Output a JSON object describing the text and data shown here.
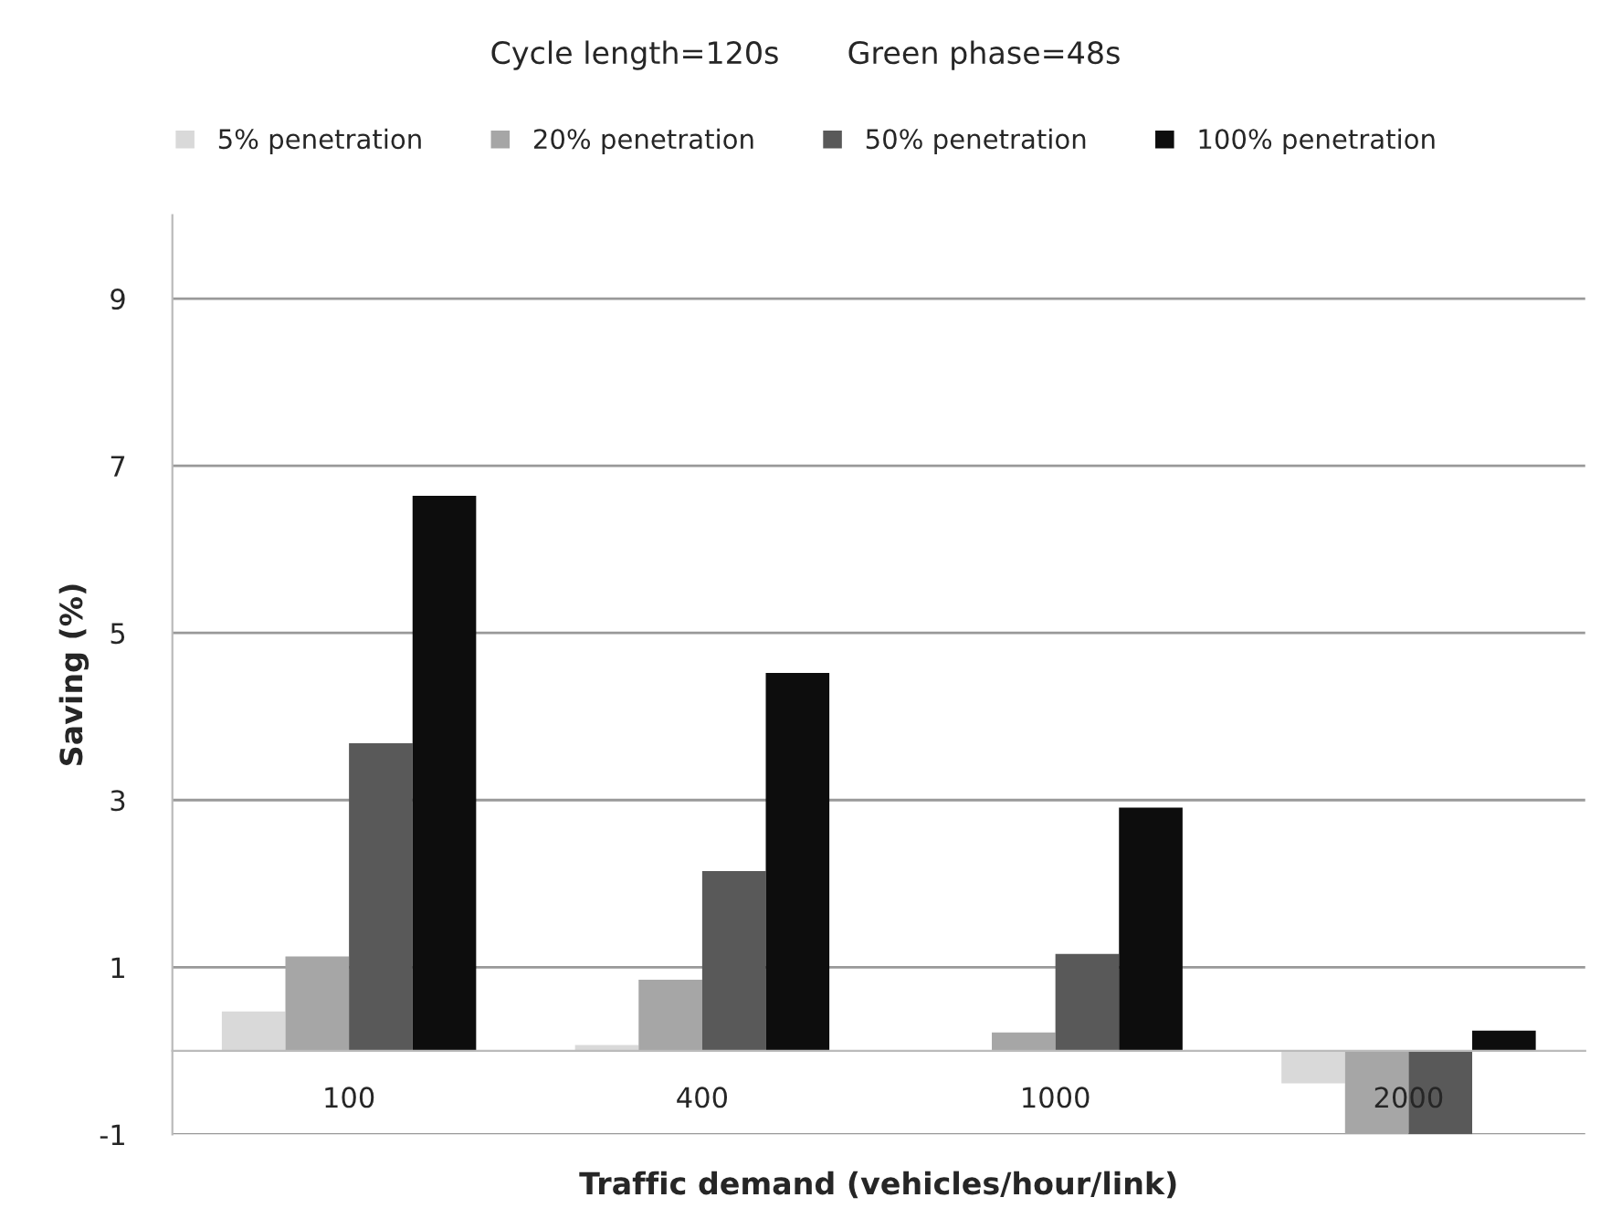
{
  "chart_data": {
    "type": "bar",
    "title": "Cycle length=120s       Green phase=48s",
    "xlabel": "Traffic demand (vehicles/hour/link)",
    "ylabel": "Saving (%)",
    "categories": [
      "100",
      "400",
      "1000",
      "2000"
    ],
    "series": [
      {
        "name": "5% penetration",
        "color": "#d9d9d9",
        "values": [
          0.47,
          0.07,
          0,
          -0.39
        ]
      },
      {
        "name": "20% penetration",
        "color": "#a6a6a6",
        "values": [
          1.13,
          0.85,
          0.22,
          -1.0
        ]
      },
      {
        "name": "50% penetration",
        "color": "#595959",
        "values": [
          3.68,
          2.15,
          1.16,
          -1.0
        ]
      },
      {
        "name": "100% penetration",
        "color": "#0d0d0d",
        "values": [
          6.64,
          4.52,
          2.91,
          0.24
        ]
      }
    ],
    "ylim": [
      -1,
      10
    ],
    "yticks": [
      -1,
      1,
      3,
      5,
      7,
      9
    ],
    "grid": "y",
    "legend": "top"
  }
}
